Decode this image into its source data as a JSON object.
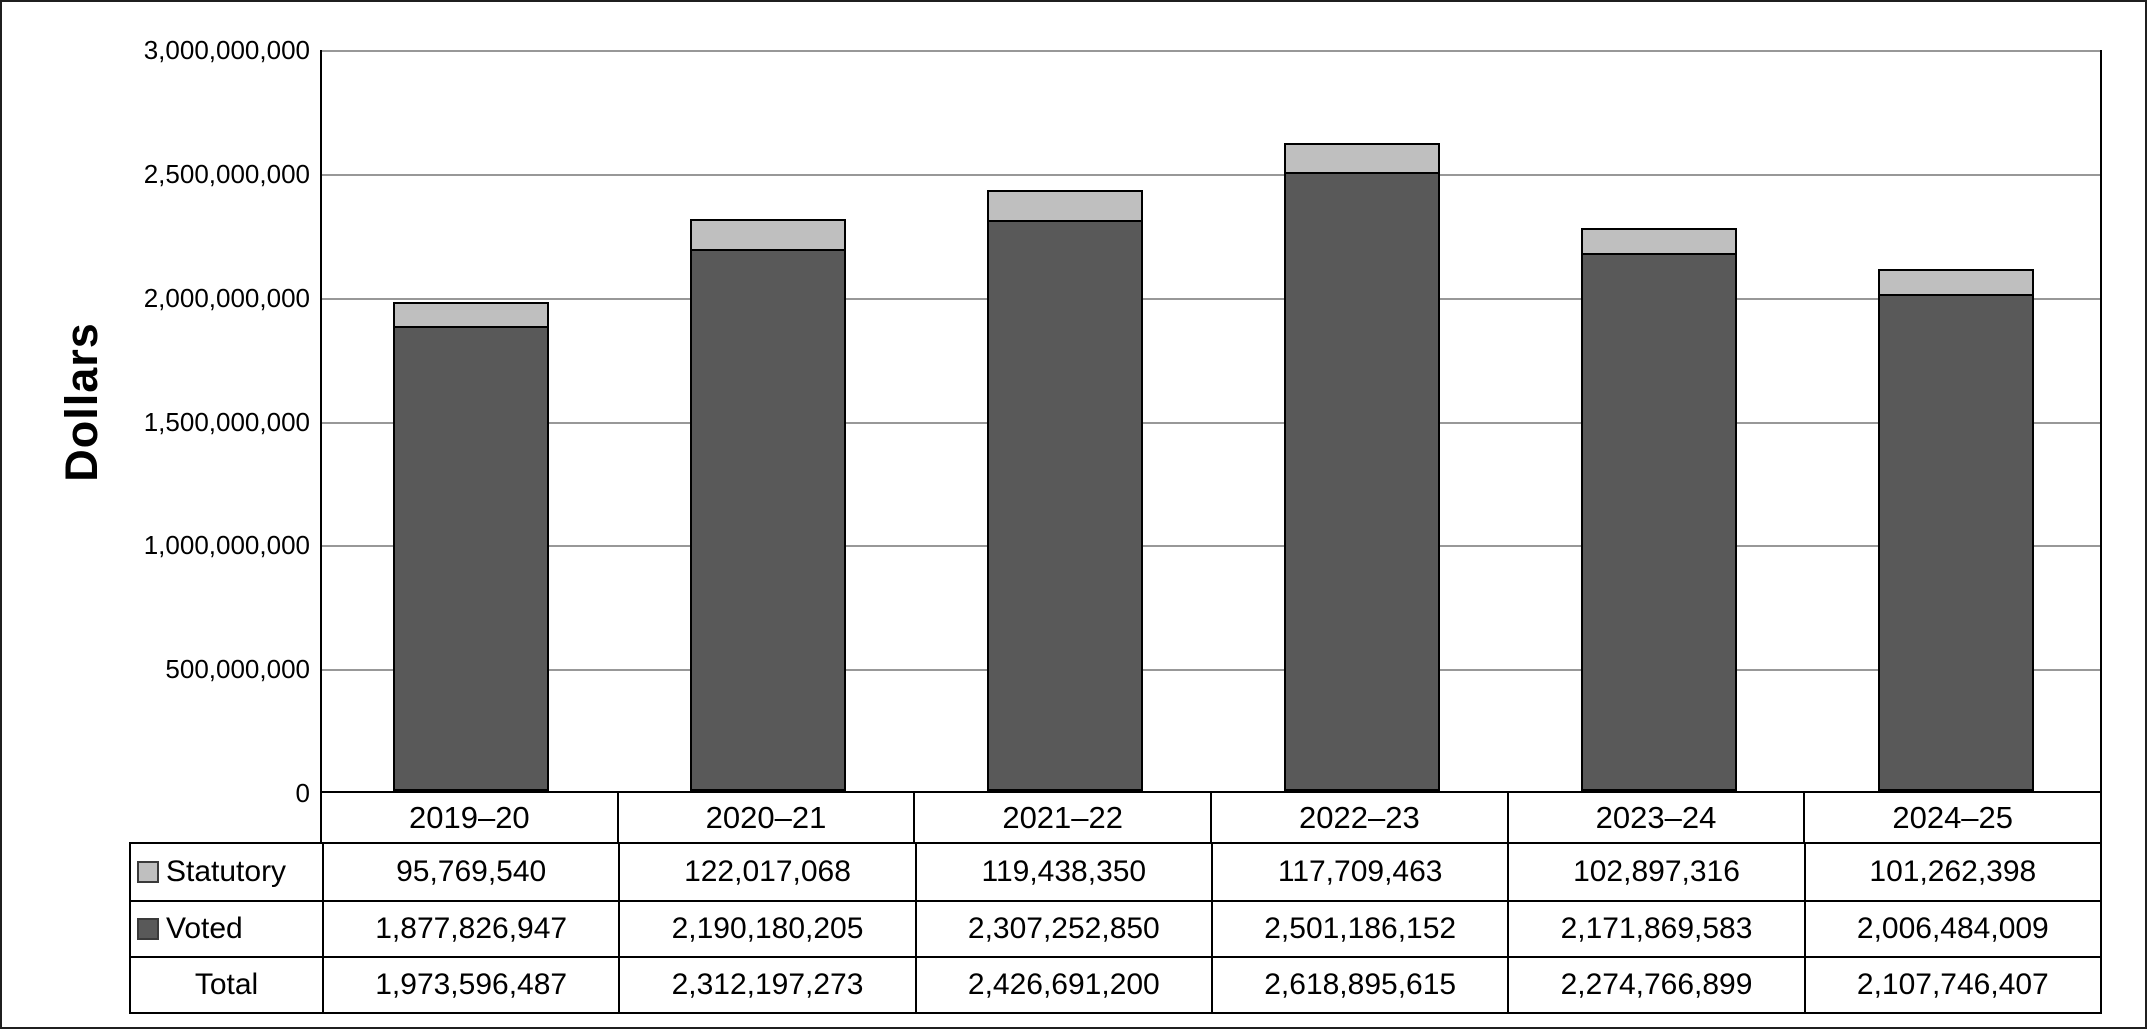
{
  "chart_data": {
    "type": "bar",
    "stacked": true,
    "title": "",
    "xlabel": "",
    "ylabel": "Dollars",
    "ylim": [
      0,
      3000000000
    ],
    "ytick_interval": 500000000,
    "ytick_labels": [
      "0",
      "500,000,000",
      "1,000,000,000",
      "1,500,000,000",
      "2,000,000,000",
      "2,500,000,000",
      "3,000,000,000"
    ],
    "grid": true,
    "legend_position": "table-left",
    "categories": [
      "2019–20",
      "2020–21",
      "2021–22",
      "2022–23",
      "2023–24",
      "2024–25"
    ],
    "series": [
      {
        "name": "Voted",
        "color": "#595959",
        "values": [
          1877826947,
          2190180205,
          2307252850,
          2501186152,
          2171869583,
          2006484009
        ]
      },
      {
        "name": "Statutory",
        "color": "#bfbfbf",
        "values": [
          95769540,
          122017068,
          119438350,
          117709463,
          102897316,
          101262398
        ]
      }
    ],
    "totals": {
      "name": "Total",
      "values": [
        1973596487,
        2312197273,
        2426691200,
        2618895615,
        2274766899,
        2107746407
      ]
    }
  },
  "table": {
    "rows": [
      {
        "label": "Statutory",
        "swatch": "#bfbfbf",
        "values": [
          "95,769,540",
          "122,017,068",
          "119,438,350",
          "117,709,463",
          "102,897,316",
          "101,262,398"
        ]
      },
      {
        "label": "Voted",
        "swatch": "#595959",
        "values": [
          "1,877,826,947",
          "2,190,180,205",
          "2,307,252,850",
          "2,501,186,152",
          "2,171,869,583",
          "2,006,484,009"
        ]
      },
      {
        "label": "Total",
        "swatch": null,
        "values": [
          "1,973,596,487",
          "2,312,197,273",
          "2,426,691,200",
          "2,618,895,615",
          "2,274,766,899",
          "2,107,746,407"
        ]
      }
    ]
  },
  "colors": {
    "voted": "#595959",
    "statutory": "#bfbfbf",
    "gridline": "#989898",
    "border": "#000000"
  }
}
